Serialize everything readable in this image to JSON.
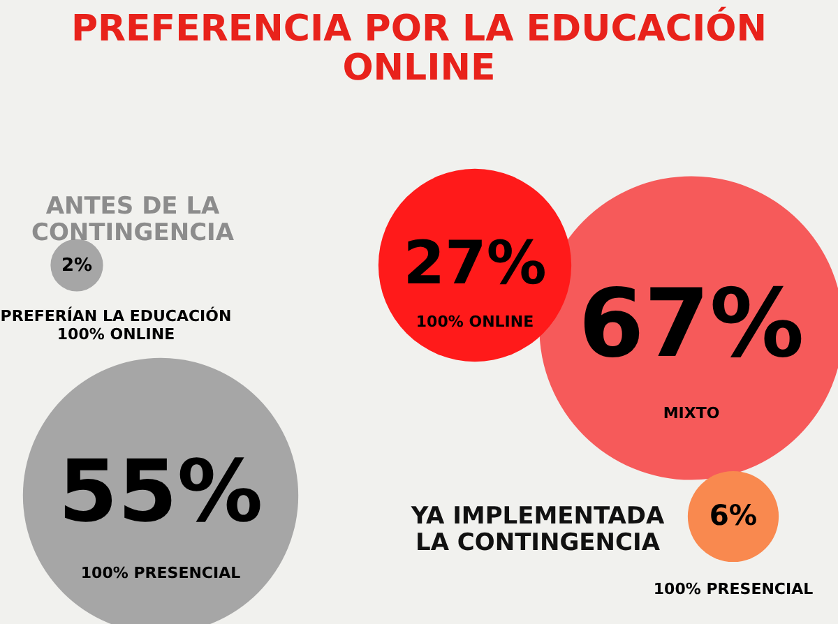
{
  "chart_data": {
    "type": "other",
    "title": "PREFERENCIA POR LA EDUCACIÓN ONLINE",
    "categories": [
      "PREFERÍAN LA EDUCACIÓN 100% ONLINE",
      "100% PRESENCIAL",
      "100% ONLINE",
      "MIXTO",
      "100% PRESENCIAL"
    ],
    "values": [
      2,
      55,
      27,
      67,
      6
    ],
    "value_labels": [
      "2%",
      "55%",
      "27%",
      "67%",
      "6%"
    ],
    "colors": [
      "#a6a6a6",
      "#a6a6a6",
      "#ff1a1a",
      "#f65a5a",
      "#f9894f"
    ],
    "annotations": [
      "ANTES DE LA CONTINGENCIA",
      "YA IMPLEMENTADA LA CONTINGENCIA"
    ]
  }
}
